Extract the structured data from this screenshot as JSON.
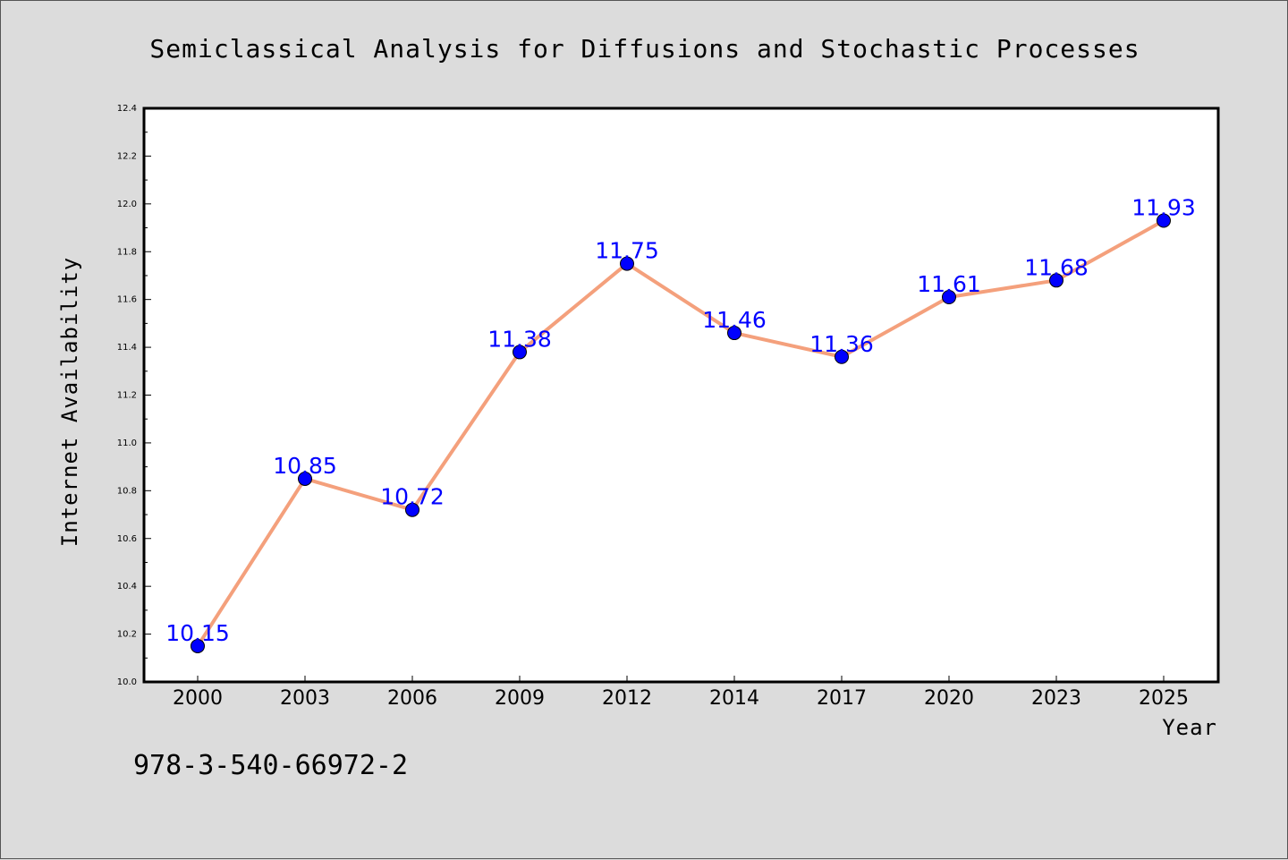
{
  "footer": {
    "text": "978-3-540-66972-2"
  },
  "chart_data": {
    "type": "line",
    "title": "Semiclassical Analysis for Diffusions and Stochastic Processes",
    "xlabel": "Year",
    "ylabel": "Internet Availability",
    "categories": [
      "2000",
      "2003",
      "2006",
      "2009",
      "2012",
      "2014",
      "2017",
      "2020",
      "2023",
      "2025"
    ],
    "series": [
      {
        "values": [
          10.15,
          10.85,
          10.72,
          11.38,
          11.75,
          11.46,
          11.36,
          11.61,
          11.68,
          11.93
        ]
      }
    ],
    "data_labels": [
      "10.15",
      "10.85",
      "10.72",
      "11.38",
      "11.75",
      "11.46",
      "11.36",
      "11.61",
      "11.68",
      "11.93"
    ],
    "ylim": [
      10.0,
      12.4
    ],
    "yticks": [
      "10.0",
      "10.2",
      "10.4",
      "10.6",
      "10.8",
      "11.0",
      "11.2",
      "11.4",
      "11.6",
      "11.8",
      "12.0",
      "12.2",
      "12.4"
    ],
    "grid": false,
    "line_color": "#f4a07c",
    "marker_color": "#0000ff",
    "label_color": "#0000ff",
    "plot_background": "#ffffff",
    "figure_background": "#dcdcdc"
  }
}
